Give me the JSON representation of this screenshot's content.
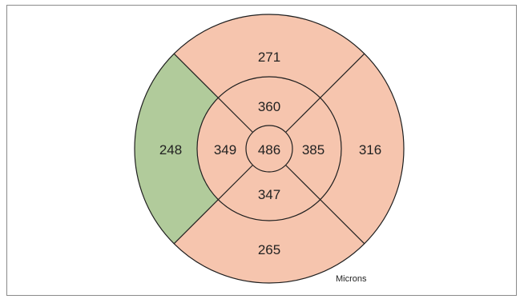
{
  "diagram": {
    "units_label": "Microns",
    "colors": {
      "normal": "#f6c5ae",
      "thin": "#b1cb9b",
      "line": "#1f1f1f"
    },
    "center": {
      "value": "486",
      "status": "normal"
    },
    "inner_ring": {
      "superior": {
        "value": "360",
        "status": "normal"
      },
      "nasal": {
        "value": "385",
        "status": "normal"
      },
      "inferior": {
        "value": "347",
        "status": "normal"
      },
      "temporal": {
        "value": "349",
        "status": "normal"
      }
    },
    "outer_ring": {
      "superior": {
        "value": "271",
        "status": "normal"
      },
      "nasal": {
        "value": "316",
        "status": "normal"
      },
      "inferior": {
        "value": "265",
        "status": "normal"
      },
      "temporal": {
        "value": "248",
        "status": "thin"
      }
    }
  }
}
